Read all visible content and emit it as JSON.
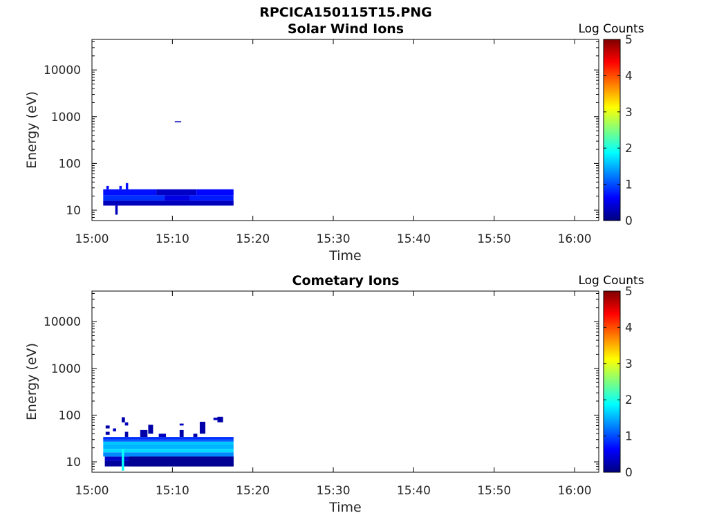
{
  "figure_title": "RPCICA150115T15.PNG",
  "colormap": [
    "#00007f",
    "#0000ff",
    "#007fff",
    "#00ffff",
    "#7fff7f",
    "#ffff00",
    "#ff7f00",
    "#ff0000",
    "#7f0000"
  ],
  "chart_data": [
    {
      "type": "heatmap",
      "title": "Solar Wind Ions",
      "xlabel": "Time",
      "ylabel": "Energy (eV)",
      "x_ticks": [
        "15:00",
        "15:10",
        "15:20",
        "15:30",
        "15:40",
        "15:50",
        "16:00"
      ],
      "x_tick_minutes": [
        0,
        10,
        20,
        30,
        40,
        50,
        60
      ],
      "xlim_minutes": [
        0,
        63
      ],
      "x_reference": "15:00",
      "y_scale": "log",
      "y_ticks": [
        "10",
        "100",
        "1000",
        "10000"
      ],
      "y_tick_values": [
        10,
        100,
        1000,
        10000
      ],
      "ylim": [
        6,
        45000
      ],
      "colorbar": {
        "label": "Log Counts",
        "range": [
          0,
          5
        ],
        "ticks": [
          "0",
          "1",
          "2",
          "3",
          "4",
          "5"
        ]
      },
      "cells": [
        {
          "t": [
            1.4,
            17.6
          ],
          "e": [
            12.5,
            16
          ],
          "v": 0.3
        },
        {
          "t": [
            1.4,
            9
          ],
          "e": [
            16,
            21
          ],
          "v": 0.85
        },
        {
          "t": [
            9,
            12.2
          ],
          "e": [
            16,
            21
          ],
          "v": 0.5
        },
        {
          "t": [
            12.2,
            17.6
          ],
          "e": [
            16,
            21
          ],
          "v": 0.75
        },
        {
          "t": [
            1.4,
            8
          ],
          "e": [
            21,
            28
          ],
          "v": 0.7
        },
        {
          "t": [
            8,
            13
          ],
          "e": [
            21,
            28
          ],
          "v": 0.35
        },
        {
          "t": [
            13,
            17.6
          ],
          "e": [
            21,
            28
          ],
          "v": 0.65
        },
        {
          "t": [
            1.8,
            2.1
          ],
          "e": [
            28,
            33
          ],
          "v": 0.6
        },
        {
          "t": [
            3.4,
            3.7
          ],
          "e": [
            28,
            33
          ],
          "v": 0.7
        },
        {
          "t": [
            4.2,
            4.5
          ],
          "e": [
            28,
            38
          ],
          "v": 0.7
        },
        {
          "t": [
            2.9,
            3.2
          ],
          "e": [
            8,
            12.5
          ],
          "v": 0.3
        },
        {
          "t": [
            10.3,
            11.1
          ],
          "e": [
            760,
            800
          ],
          "v": 0.3
        }
      ]
    },
    {
      "type": "heatmap",
      "title": "Cometary Ions",
      "xlabel": "Time",
      "ylabel": "Energy (eV)",
      "x_ticks": [
        "15:00",
        "15:10",
        "15:20",
        "15:30",
        "15:40",
        "15:50",
        "16:00"
      ],
      "x_tick_minutes": [
        0,
        10,
        20,
        30,
        40,
        50,
        60
      ],
      "xlim_minutes": [
        0,
        63
      ],
      "x_reference": "15:00",
      "y_scale": "log",
      "y_ticks": [
        "10",
        "100",
        "1000",
        "10000"
      ],
      "y_tick_values": [
        10,
        100,
        1000,
        10000
      ],
      "ylim": [
        6,
        45000
      ],
      "colorbar": {
        "label": "Log Counts",
        "range": [
          0,
          5
        ],
        "ticks": [
          "0",
          "1",
          "2",
          "3",
          "4",
          "5"
        ]
      },
      "cells": [
        {
          "t": [
            1.6,
            17.6
          ],
          "e": [
            8,
            10.5
          ],
          "v": 0.15
        },
        {
          "t": [
            1.6,
            17.6
          ],
          "e": [
            10.5,
            13
          ],
          "v": 0.35
        },
        {
          "t": [
            1.4,
            17.6
          ],
          "e": [
            13,
            16
          ],
          "v": 1.3
        },
        {
          "t": [
            1.4,
            17.6
          ],
          "e": [
            16,
            19
          ],
          "v": 1.7
        },
        {
          "t": [
            1.4,
            17.6
          ],
          "e": [
            19,
            23
          ],
          "v": 1.5
        },
        {
          "t": [
            1.4,
            17.6
          ],
          "e": [
            23,
            27
          ],
          "v": 1.6
        },
        {
          "t": [
            1.4,
            17.6
          ],
          "e": [
            27,
            30
          ],
          "v": 1.1
        },
        {
          "t": [
            1.4,
            17.6
          ],
          "e": [
            30,
            34
          ],
          "v": 0.85
        },
        {
          "t": [
            4.6,
            17.6
          ],
          "e": [
            8,
            13
          ],
          "v": 0.1
        },
        {
          "t": [
            3.7,
            4.0
          ],
          "e": [
            6.5,
            19
          ],
          "v": 1.9
        },
        {
          "t": [
            1.7,
            2.2
          ],
          "e": [
            38,
            44
          ],
          "v": 0.2
        },
        {
          "t": [
            1.7,
            2.2
          ],
          "e": [
            52,
            60
          ],
          "v": 0.2
        },
        {
          "t": [
            2.6,
            3.0
          ],
          "e": [
            45,
            52
          ],
          "v": 0.3
        },
        {
          "t": [
            3.7,
            4.1
          ],
          "e": [
            70,
            90
          ],
          "v": 0.2
        },
        {
          "t": [
            4.1,
            4.5
          ],
          "e": [
            60,
            70
          ],
          "v": 0.3
        },
        {
          "t": [
            4.1,
            4.5
          ],
          "e": [
            34,
            44
          ],
          "v": 0.2
        },
        {
          "t": [
            6.0,
            6.9
          ],
          "e": [
            34,
            48
          ],
          "v": 0.2
        },
        {
          "t": [
            7.0,
            7.6
          ],
          "e": [
            40,
            62
          ],
          "v": 0.2
        },
        {
          "t": [
            8.3,
            9.2
          ],
          "e": [
            34,
            40
          ],
          "v": 0.3
        },
        {
          "t": [
            10.9,
            11.4
          ],
          "e": [
            34,
            48
          ],
          "v": 0.2
        },
        {
          "t": [
            10.9,
            11.4
          ],
          "e": [
            60,
            66
          ],
          "v": 0.3
        },
        {
          "t": [
            12.6,
            13.1
          ],
          "e": [
            34,
            40
          ],
          "v": 0.2
        },
        {
          "t": [
            13.4,
            14.1
          ],
          "e": [
            40,
            72
          ],
          "v": 0.2
        },
        {
          "t": [
            15.1,
            15.6
          ],
          "e": [
            78,
            88
          ],
          "v": 0.3
        },
        {
          "t": [
            15.6,
            16.3
          ],
          "e": [
            70,
            92
          ],
          "v": 0.2
        }
      ]
    }
  ]
}
